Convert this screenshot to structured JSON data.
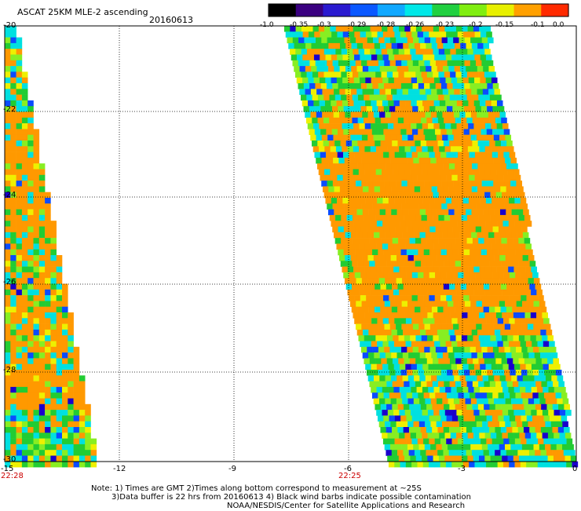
{
  "header": {
    "title": "ASCAT 25KM MLE-2 ascending",
    "date": "20160613"
  },
  "colorbar": {
    "labels": [
      "-1.0",
      "-0.35",
      "-0.3",
      "-0.29",
      "-0.28",
      "-0.26",
      "-0.23",
      "-0.2",
      "-0.15",
      "-0.1",
      "0.0"
    ],
    "colors": [
      "#000000",
      "#3a0080",
      "#2a1ad0",
      "#0a58ff",
      "#10a8ff",
      "#00e8e8",
      "#20d040",
      "#80ee10",
      "#e8f000",
      "#ffa000",
      "#ff2a00"
    ]
  },
  "axes": {
    "x_ticks": [
      "-15",
      "-12",
      "-9",
      "-6",
      "-3",
      "0"
    ],
    "y_ticks": [
      "-20",
      "-22",
      "-24",
      "-26",
      "-28",
      "-30"
    ],
    "time_labels": [
      "22:28",
      "22:25"
    ]
  },
  "swath_colors": {
    "dominant": "#ff9900",
    "mix": [
      "#ff9900",
      "#00e0e0",
      "#22cc33",
      "#88ee22",
      "#eef000",
      "#0a4cff",
      "#1a00cc"
    ]
  },
  "notes": {
    "line1": "Note: 1) Times are GMT 2)Times along bottom correspond to measurement at ~25S",
    "line2": "3)Data buffer is 22 hrs from 20160613 4) Black wind barbs indicate possible contamination",
    "line3": "NOAA/NESDIS/Center for Satellite Applications and Research"
  }
}
